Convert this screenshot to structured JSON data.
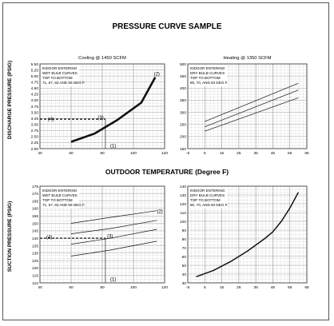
{
  "title": "PRESSURE CURVE SAMPLE",
  "ylabel_discharge": "DISCHARGE PRESSURE (PSIG)",
  "ylabel_suction": "SUCTION PRESSURE (PSIG)",
  "xlabel_outdoor": "OUTDOOR TEMPERATURE (Degree F)",
  "chart_data": [
    {
      "id": "discharge-cooling",
      "type": "line",
      "title": "Cooling @ 1450 SCFM",
      "xlim": [
        40,
        120
      ],
      "ylim": [
        2.0,
        5.5
      ],
      "xticks": [
        40,
        60,
        80,
        100,
        120
      ],
      "yticks": [
        2.0,
        2.25,
        2.5,
        2.75,
        3.0,
        3.25,
        3.5,
        3.75,
        4.0,
        4.25,
        4.5,
        4.75,
        5.0,
        5.25,
        5.5
      ],
      "ytick_labels": [
        "2.00",
        "2.25",
        "2.50",
        "2.75",
        "3.00",
        "3.25",
        "3.50",
        "3.75",
        "4.00",
        "4.25",
        "4.50",
        "4.75",
        "5.00",
        "5.25",
        "5.50"
      ],
      "note": [
        "INDOOR ENTERING",
        "WET BULB CURVES",
        "TOP TO BOTTOM",
        "71, 67, 63 AND 59 DEG F."
      ],
      "series": [
        {
          "style": "thick",
          "x": [
            60,
            75,
            90,
            105,
            114
          ],
          "y": [
            2.28,
            2.62,
            3.2,
            3.9,
            4.95
          ]
        }
      ],
      "ref_lines": [
        {
          "axis": "h",
          "value": 3.22,
          "from": 40,
          "to": 82
        },
        {
          "axis": "v",
          "value": 82,
          "from": 2.0,
          "to": 3.22
        }
      ],
      "markers": [
        {
          "label": "(1)",
          "x": 87,
          "y": 2.12
        },
        {
          "label": "(2)",
          "x": 115,
          "y": 5.08
        },
        {
          "label": "(3)",
          "x": 79,
          "y": 3.29
        },
        {
          "label": "(4)",
          "x": 47,
          "y": 3.22
        }
      ]
    },
    {
      "id": "discharge-heating",
      "type": "line",
      "title": "Heating @ 1350 SCFM",
      "xlim": [
        -5,
        65
      ],
      "ylim": [
        150,
        500
      ],
      "xticks": [
        -5,
        5,
        15,
        25,
        35,
        45,
        55,
        65
      ],
      "yticks": [
        150,
        200,
        250,
        300,
        350,
        400,
        450,
        500
      ],
      "ytick_labels": [
        "150",
        "200",
        "250",
        "300",
        "350",
        "400",
        "450",
        "500"
      ],
      "note": [
        "INDOOR ENTERING",
        "DRY BULB CURVES",
        "TOP TO BOTTOM",
        "80, 70, AND 60 DEG F."
      ],
      "series": [
        {
          "style": "thin",
          "x": [
            5,
            60
          ],
          "y": [
            262,
            420
          ]
        },
        {
          "style": "thin",
          "x": [
            5,
            60
          ],
          "y": [
            240,
            392
          ]
        },
        {
          "style": "thin",
          "x": [
            5,
            60
          ],
          "y": [
            222,
            360
          ]
        }
      ]
    },
    {
      "id": "suction-cooling",
      "type": "line",
      "title": "",
      "xlim": [
        40,
        120
      ],
      "ylim": [
        110,
        175
      ],
      "xticks": [
        40,
        60,
        80,
        100,
        120
      ],
      "yticks": [
        110,
        115,
        120,
        125,
        130,
        135,
        140,
        145,
        150,
        155,
        160,
        165,
        170,
        175
      ],
      "ytick_labels": [
        "110",
        "115",
        "120",
        "125",
        "130",
        "135",
        "140",
        "145",
        "150",
        "155",
        "160",
        "165",
        "170",
        "175"
      ],
      "note": [
        "INDOOR ENTERING",
        "WET BULB CURVES",
        "TOP TO BOTTOM",
        "71, 67, 63 AND 59 DEG F."
      ],
      "series": [
        {
          "style": "thin",
          "x": [
            60,
            85,
            115
          ],
          "y": [
            150,
            154,
            158.5
          ]
        },
        {
          "style": "thin",
          "x": [
            60,
            85,
            115
          ],
          "y": [
            143,
            146.5,
            152
          ]
        },
        {
          "style": "thin",
          "x": [
            60,
            85,
            115
          ],
          "y": [
            136,
            140,
            146
          ]
        },
        {
          "style": "thin",
          "x": [
            60,
            85,
            115
          ],
          "y": [
            128,
            132,
            138
          ]
        }
      ],
      "ref_lines": [
        {
          "axis": "h",
          "value": 140,
          "from": 40,
          "to": 82
        },
        {
          "axis": "v",
          "value": 82,
          "from": 110,
          "to": 140
        }
      ],
      "markers": [
        {
          "label": "(1)",
          "x": 87,
          "y": 112.5
        },
        {
          "label": "(2)",
          "x": 117,
          "y": 158
        },
        {
          "label": "(3)",
          "x": 85,
          "y": 141.5
        },
        {
          "label": "(4)",
          "x": 46,
          "y": 141
        }
      ]
    },
    {
      "id": "suction-heating",
      "type": "line",
      "title": "",
      "xlim": [
        -5,
        65
      ],
      "ylim": [
        30,
        140
      ],
      "xticks": [
        -5,
        5,
        15,
        25,
        35,
        45,
        55,
        65
      ],
      "yticks": [
        30,
        40,
        50,
        60,
        70,
        80,
        90,
        100,
        110,
        120,
        130,
        140
      ],
      "ytick_labels": [
        "30",
        "40",
        "50",
        "60",
        "70",
        "80",
        "90",
        "100",
        "110",
        "120",
        "130",
        "140"
      ],
      "note": [
        "INDOOR ENTERING",
        "DRY BULB CURVES",
        "TOP TO BOTTOM",
        "80, 70, AND 60 DEG F."
      ],
      "series": [
        {
          "style": "medium",
          "x": [
            0,
            10,
            20,
            30,
            40,
            45,
            50,
            55,
            60
          ],
          "y": [
            37,
            44,
            54,
            66,
            80,
            88,
            100,
            115,
            133
          ]
        }
      ]
    }
  ]
}
